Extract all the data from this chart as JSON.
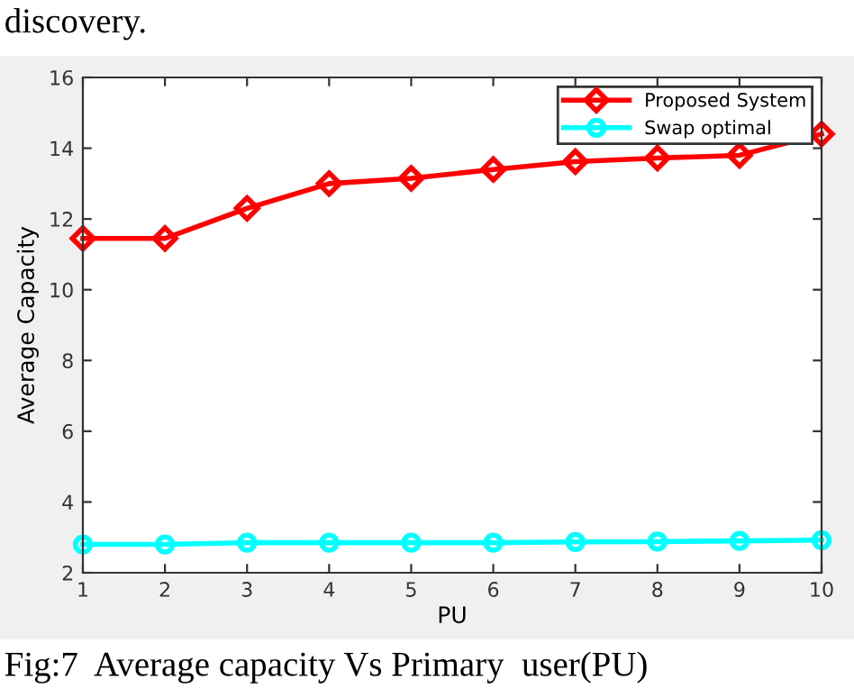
{
  "chart_data": {
    "type": "line",
    "xlabel": "PU",
    "ylabel": "Average Capacity",
    "x": [
      1,
      2,
      3,
      4,
      5,
      6,
      7,
      8,
      9,
      10
    ],
    "series": [
      {
        "name": "Proposed System",
        "color": "#ff0000",
        "marker": "diamond",
        "values": [
          11.45,
          11.45,
          12.3,
          13.0,
          13.15,
          13.4,
          13.62,
          13.72,
          13.8,
          14.4
        ]
      },
      {
        "name": "Swap optimal",
        "color": "#00ffff",
        "marker": "circle",
        "values": [
          2.8,
          2.8,
          2.85,
          2.85,
          2.85,
          2.85,
          2.87,
          2.88,
          2.9,
          2.92
        ]
      }
    ],
    "xlim": [
      1,
      10
    ],
    "xticks": [
      1,
      2,
      3,
      4,
      5,
      6,
      7,
      8,
      9,
      10
    ],
    "ylim": [
      2,
      16
    ],
    "yticks": [
      2,
      4,
      6,
      8,
      10,
      12,
      14,
      16
    ],
    "grid": false,
    "legend": "top right",
    "line_style": "solid",
    "annotations": [
      "discovery.",
      "Fig:7  Average capacity Vs Primary  user(PU)"
    ]
  }
}
